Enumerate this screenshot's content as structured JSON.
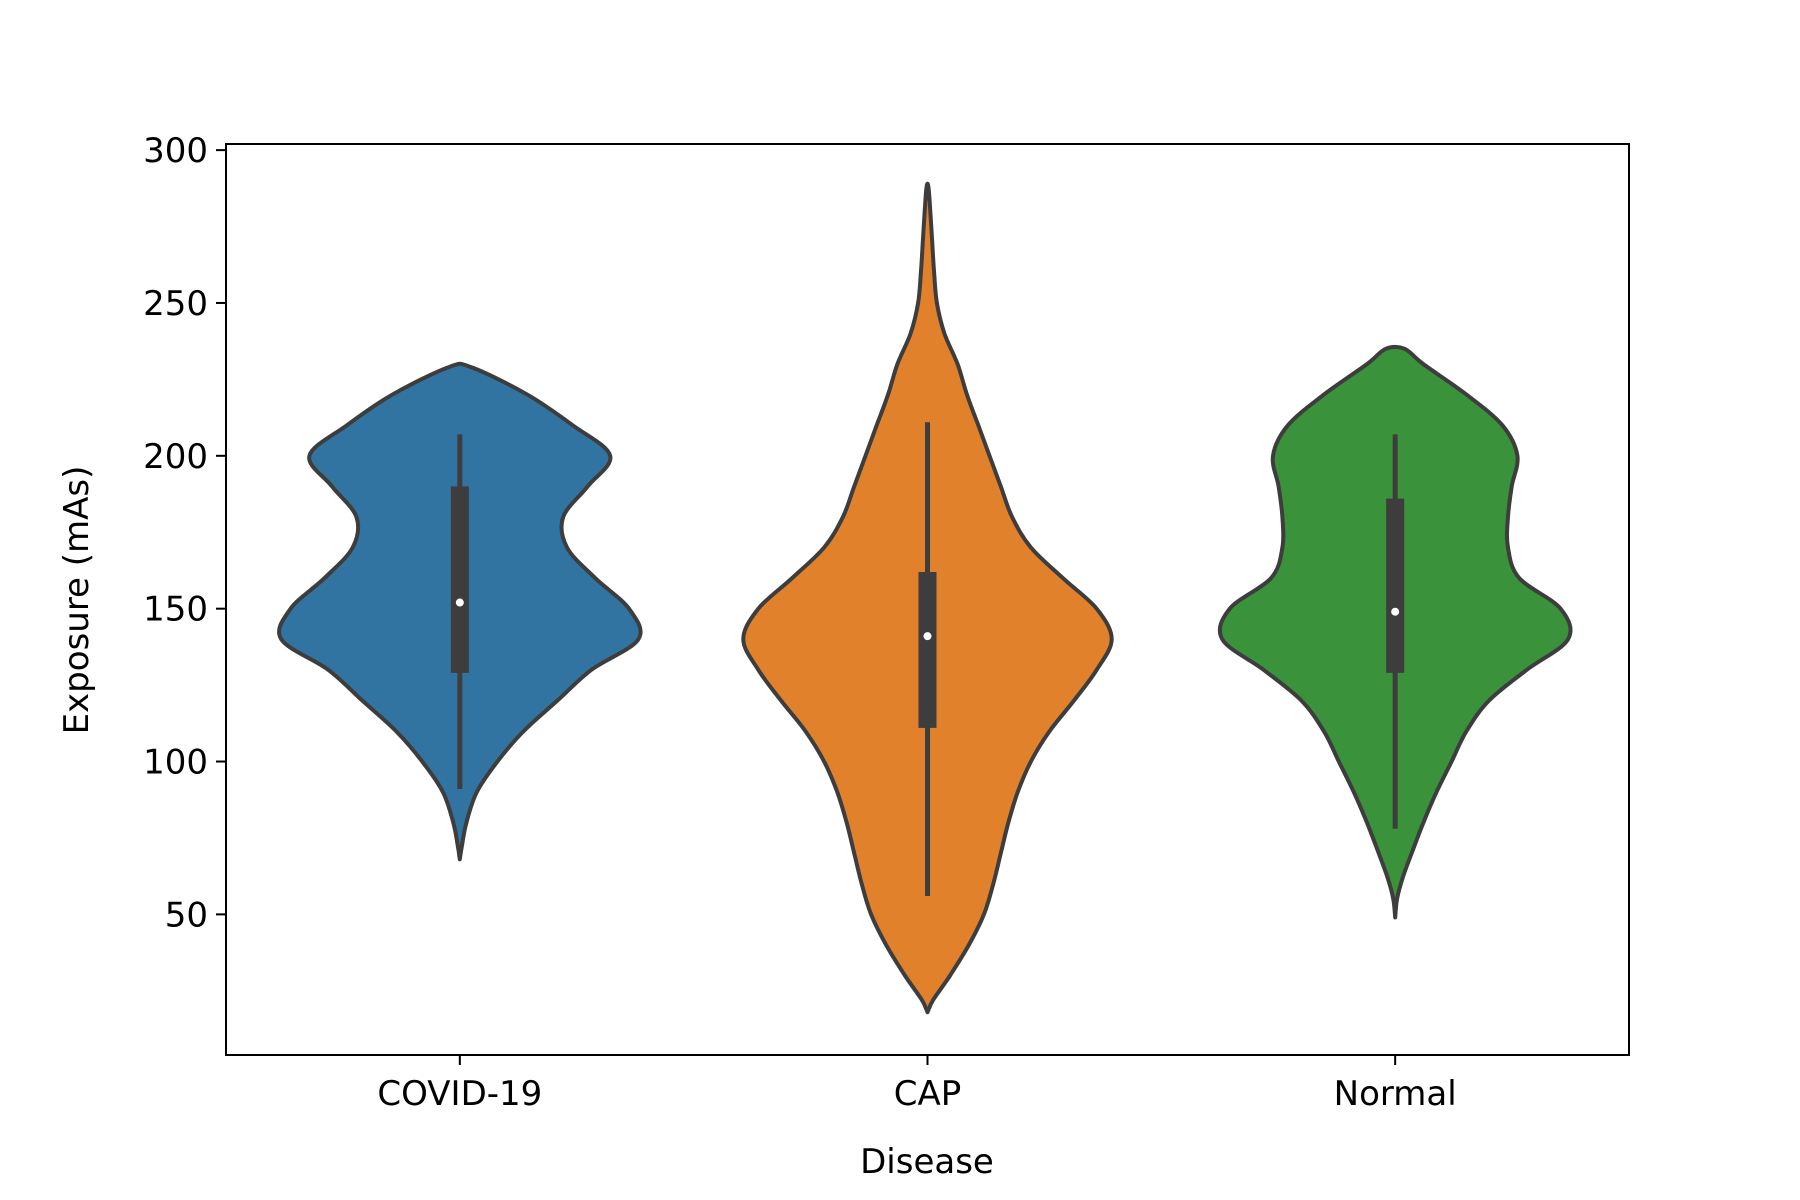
{
  "chart_data": {
    "type": "violin",
    "title": "",
    "xlabel": "Disease",
    "ylabel": "Exposure (mAs)",
    "categories": [
      "COVID-19",
      "CAP",
      "Normal"
    ],
    "ylim": [
      4,
      302
    ],
    "yticks": [
      50,
      100,
      150,
      200,
      250,
      300
    ],
    "grid": false,
    "legend": "none",
    "colors": [
      "#3274a1",
      "#e1812c",
      "#3a923a"
    ],
    "edge_color": "#3d3d3d",
    "median_color": "#ffffff",
    "series": [
      {
        "category": "COVID-19",
        "median": 152,
        "q1": 129,
        "q3": 190,
        "whisker_low": 91,
        "whisker_high": 207,
        "density": [
          [
            68,
            0
          ],
          [
            72,
            0.01
          ],
          [
            80,
            0.035
          ],
          [
            90,
            0.09
          ],
          [
            100,
            0.2
          ],
          [
            110,
            0.34
          ],
          [
            120,
            0.52
          ],
          [
            130,
            0.7
          ],
          [
            140,
            0.95
          ],
          [
            150,
            0.9
          ],
          [
            160,
            0.72
          ],
          [
            170,
            0.57
          ],
          [
            180,
            0.55
          ],
          [
            190,
            0.68
          ],
          [
            200,
            0.8
          ],
          [
            210,
            0.6
          ],
          [
            220,
            0.36
          ],
          [
            229,
            0.06
          ]
        ]
      },
      {
        "category": "CAP",
        "median": 141,
        "q1": 111,
        "q3": 162,
        "whisker_low": 56,
        "whisker_high": 211,
        "density": [
          [
            18,
            0
          ],
          [
            22,
            0.03
          ],
          [
            30,
            0.12
          ],
          [
            40,
            0.22
          ],
          [
            50,
            0.3
          ],
          [
            60,
            0.35
          ],
          [
            70,
            0.39
          ],
          [
            80,
            0.43
          ],
          [
            90,
            0.48
          ],
          [
            100,
            0.55
          ],
          [
            110,
            0.65
          ],
          [
            120,
            0.78
          ],
          [
            130,
            0.9
          ],
          [
            140,
            0.98
          ],
          [
            150,
            0.9
          ],
          [
            160,
            0.72
          ],
          [
            170,
            0.55
          ],
          [
            180,
            0.45
          ],
          [
            190,
            0.39
          ],
          [
            200,
            0.33
          ],
          [
            210,
            0.27
          ],
          [
            220,
            0.21
          ],
          [
            230,
            0.16
          ],
          [
            240,
            0.09
          ],
          [
            250,
            0.05
          ],
          [
            260,
            0.035
          ],
          [
            270,
            0.025
          ],
          [
            280,
            0.015
          ],
          [
            288,
            0.005
          ]
        ]
      },
      {
        "category": "Normal",
        "median": 149,
        "q1": 129,
        "q3": 186,
        "whisker_low": 78,
        "whisker_high": 207,
        "density": [
          [
            49,
            0
          ],
          [
            55,
            0.01
          ],
          [
            62,
            0.04
          ],
          [
            72,
            0.1
          ],
          [
            80,
            0.15
          ],
          [
            90,
            0.22
          ],
          [
            100,
            0.3
          ],
          [
            110,
            0.38
          ],
          [
            120,
            0.5
          ],
          [
            130,
            0.7
          ],
          [
            140,
            0.92
          ],
          [
            150,
            0.88
          ],
          [
            160,
            0.66
          ],
          [
            170,
            0.6
          ],
          [
            180,
            0.6
          ],
          [
            190,
            0.62
          ],
          [
            200,
            0.65
          ],
          [
            210,
            0.57
          ],
          [
            220,
            0.38
          ],
          [
            230,
            0.15
          ],
          [
            235,
            0.05
          ]
        ]
      }
    ]
  }
}
